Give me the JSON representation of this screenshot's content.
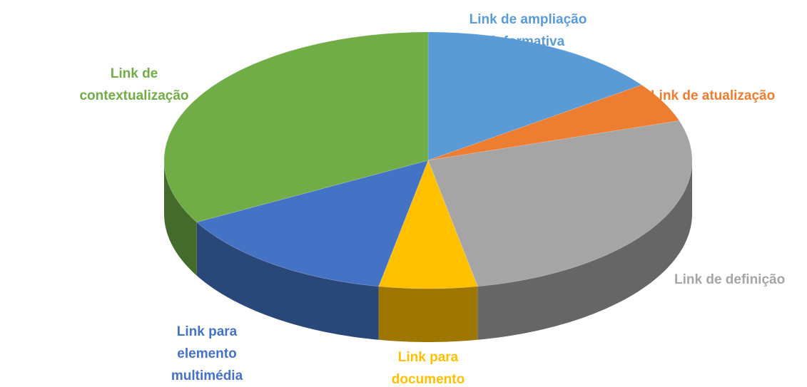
{
  "chart_data": {
    "type": "pie3d",
    "categories": [
      "Link de ampliação informativa",
      "Link de atualização",
      "Link de definição",
      "Link para documento",
      "Link para elemento multimédia",
      "Link de contextualização"
    ],
    "values": [
      15,
      5,
      27,
      6,
      14,
      33
    ],
    "colors": [
      "#5b9bd5",
      "#ed7d31",
      "#a5a5a5",
      "#ffc000",
      "#4472c4",
      "#70ad47"
    ]
  }
}
